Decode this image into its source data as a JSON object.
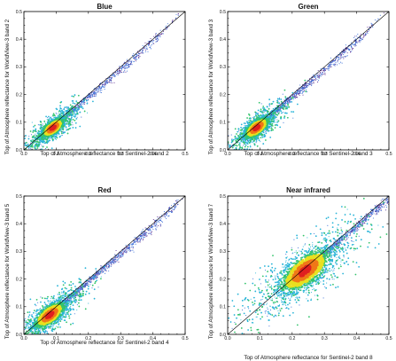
{
  "chart_data": [
    {
      "type": "scatter",
      "title": "Blue",
      "xlabel": "Top of Atmosphere reflectance for Sentinel-2 band 2",
      "ylabel": "Top of Atmosphere reflectance for WorldView-3 band 2",
      "xlim": [
        0,
        0.5
      ],
      "ylim": [
        0,
        0.5
      ],
      "xticks": [
        "0.0",
        "0.1",
        "0.2",
        "0.3",
        "0.4",
        "0.5"
      ],
      "yticks": [
        "0.0",
        "0.1",
        "0.2",
        "0.3",
        "0.4",
        "0.5"
      ],
      "reference_line": "1:1",
      "density": {
        "center": [
          0.09,
          0.08
        ],
        "core_spread": 0.025,
        "tail_extent": 0.35
      }
    },
    {
      "type": "scatter",
      "title": "Green",
      "xlabel": "Top of Atmosphere reflectance for Sentinel-2 band 3",
      "ylabel": "Top of Atmosphere reflectance for WorldView-3 band 3",
      "xlim": [
        0,
        0.5
      ],
      "ylim": [
        0,
        0.5
      ],
      "xticks": [
        "0.0",
        "0.1",
        "0.2",
        "0.3",
        "0.4",
        "0.5"
      ],
      "yticks": [
        "0.0",
        "0.1",
        "0.2",
        "0.3",
        "0.4",
        "0.5"
      ],
      "reference_line": "1:1",
      "density": {
        "center": [
          0.09,
          0.08
        ],
        "core_spread": 0.028,
        "tail_extent": 0.35
      }
    },
    {
      "type": "scatter",
      "title": "Red",
      "xlabel": "Top of Atmosphere reflectance for Sentinel-2 band 4",
      "ylabel": "Top of Atmosphere reflectance for WorldView-3 band 5",
      "xlim": [
        0,
        0.5
      ],
      "ylim": [
        0,
        0.5
      ],
      "xticks": [
        "0.0",
        "0.1",
        "0.2",
        "0.3",
        "0.4",
        "0.5"
      ],
      "yticks": [
        "0.0",
        "0.1",
        "0.2",
        "0.3",
        "0.4",
        "0.5"
      ],
      "reference_line": "1:1",
      "density": {
        "center": [
          0.08,
          0.07
        ],
        "core_spread": 0.035,
        "tail_extent": 0.4
      }
    },
    {
      "type": "scatter",
      "title": "Near infrared",
      "xlabel": "Top of Atmosphere reflectance for Sentinel-2 band 8",
      "ylabel": "Top of Atmosphere reflectance for WorldView-3 band 7",
      "xlim": [
        0,
        0.5
      ],
      "ylim": [
        0,
        0.5
      ],
      "xticks": [
        "0.0",
        "0.1",
        "0.2",
        "0.3",
        "0.4",
        "0.5"
      ],
      "yticks": [
        "0.0",
        "0.1",
        "0.2",
        "0.3",
        "0.4",
        "0.5"
      ],
      "reference_line": "1:1",
      "density": {
        "center": [
          0.24,
          0.23
        ],
        "core_spread": 0.06,
        "tail_extent": 0.48
      }
    }
  ],
  "colors": {
    "density_scale": [
      "#5a2d91",
      "#3a6fd8",
      "#28b4d8",
      "#34c46c",
      "#e8e020",
      "#f07818",
      "#e02020"
    ],
    "reference_line": "#000000"
  }
}
